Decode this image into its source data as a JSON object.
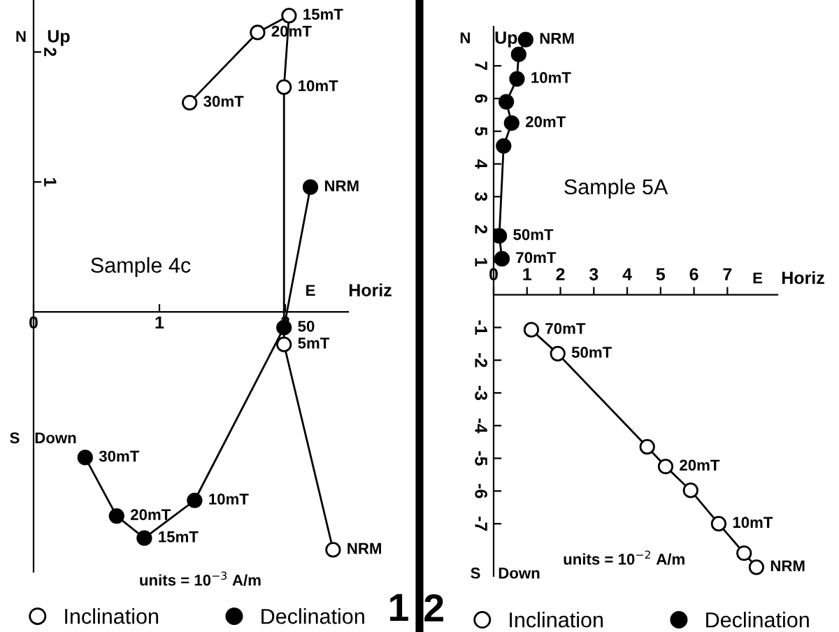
{
  "chart_data": [
    {
      "type": "line",
      "xlabel": "Horiz",
      "ylabel": "Up",
      "marker": "circle",
      "line_style": "solid",
      "legend": "bottom",
      "grid": false,
      "xlim": [
        0,
        2.5
      ],
      "ylim": [
        -2.0,
        2.4
      ],
      "xticks": [
        0,
        1,
        2
      ],
      "yticks": [
        1,
        2
      ],
      "series": [
        {
          "name": "Inclination",
          "color": "#ffffff",
          "x": [
            2.38,
            1.99,
            1.99,
            2.03,
            1.78,
            1.24
          ],
          "values": [
            -1.83,
            -0.25,
            1.73,
            2.28,
            2.15,
            1.61
          ]
        },
        {
          "name": "Declination",
          "color": "#000000",
          "x": [
            2.2,
            1.99,
            1.28,
            0.88,
            0.66,
            0.41
          ],
          "values": [
            0.96,
            -0.12,
            -1.45,
            -1.74,
            -1.57,
            -1.12
          ]
        }
      ],
      "annotations": [
        "N",
        "E",
        "S",
        "Down",
        "Sample 4c",
        "units = 10$^{−3}$ A/m",
        "1",
        {
          "text": "NRM",
          "x": 2.38,
          "y": -1.83
        },
        {
          "text": "5mT",
          "x": 1.99,
          "y": -0.25
        },
        {
          "text": "10mT",
          "x": 1.99,
          "y": 1.73
        },
        {
          "text": "15mT",
          "x": 2.03,
          "y": 2.28
        },
        {
          "text": "20mT",
          "x": 1.78,
          "y": 2.15
        },
        {
          "text": "30mT",
          "x": 1.24,
          "y": 1.61
        },
        {
          "text": "NRM",
          "x": 2.2,
          "y": 0.96
        },
        {
          "text": "50",
          "x": 1.99,
          "y": -0.12
        },
        {
          "text": "10mT",
          "x": 1.28,
          "y": -1.45
        },
        {
          "text": "15mT",
          "x": 0.88,
          "y": -1.74
        },
        {
          "text": "20mT",
          "x": 0.66,
          "y": -1.57
        },
        {
          "text": "30mT",
          "x": 0.41,
          "y": -1.12
        }
      ]
    },
    {
      "type": "line",
      "xlabel": "Horiz",
      "ylabel": "Up",
      "marker": "circle",
      "line_style": "solid",
      "legend": "bottom",
      "grid": false,
      "xlim": [
        0,
        8.5
      ],
      "ylim": [
        -8.6,
        8.2
      ],
      "xticks": [
        0,
        1,
        2,
        3,
        4,
        5,
        6,
        7
      ],
      "yticks": [
        -7,
        -6,
        -5,
        -4,
        -3,
        -2,
        -1,
        1,
        2,
        3,
        4,
        5,
        6,
        7
      ],
      "series": [
        {
          "name": "Inclination",
          "color": "#ffffff",
          "x": [
            1.13,
            1.92,
            4.6,
            5.15,
            5.9,
            6.74,
            7.5,
            7.87
          ],
          "values": [
            -1.07,
            -1.8,
            -4.65,
            -5.25,
            -5.98,
            -7.0,
            -7.9,
            -8.33
          ]
        },
        {
          "name": "Declination",
          "color": "#000000",
          "x": [
            0.96,
            0.75,
            0.7,
            0.38,
            0.54,
            0.3,
            0.17,
            0.25
          ],
          "values": [
            7.8,
            7.35,
            6.6,
            5.9,
            5.25,
            4.55,
            1.8,
            1.1
          ]
        }
      ],
      "annotations": [
        "N",
        "E",
        "S",
        "Down",
        "Sample 5A",
        "units = 10$^{−2}$ A/m",
        "2",
        {
          "text": "70mT",
          "x": 1.13,
          "y": -1.07
        },
        {
          "text": "50mT",
          "x": 1.92,
          "y": -1.8
        },
        {
          "text": "20mT",
          "x": 5.15,
          "y": -5.25
        },
        {
          "text": "10mT",
          "x": 6.74,
          "y": -7.0
        },
        {
          "text": "NRM",
          "x": 7.87,
          "y": -8.33
        },
        {
          "text": "NRM",
          "x": 0.96,
          "y": 7.8
        },
        {
          "text": "10mT",
          "x": 0.7,
          "y": 6.6
        },
        {
          "text": "20mT",
          "x": 0.54,
          "y": 5.25
        },
        {
          "text": "50mT",
          "x": 0.17,
          "y": 1.8
        },
        {
          "text": "70mT",
          "x": 0.25,
          "y": 1.1
        }
      ]
    }
  ]
}
